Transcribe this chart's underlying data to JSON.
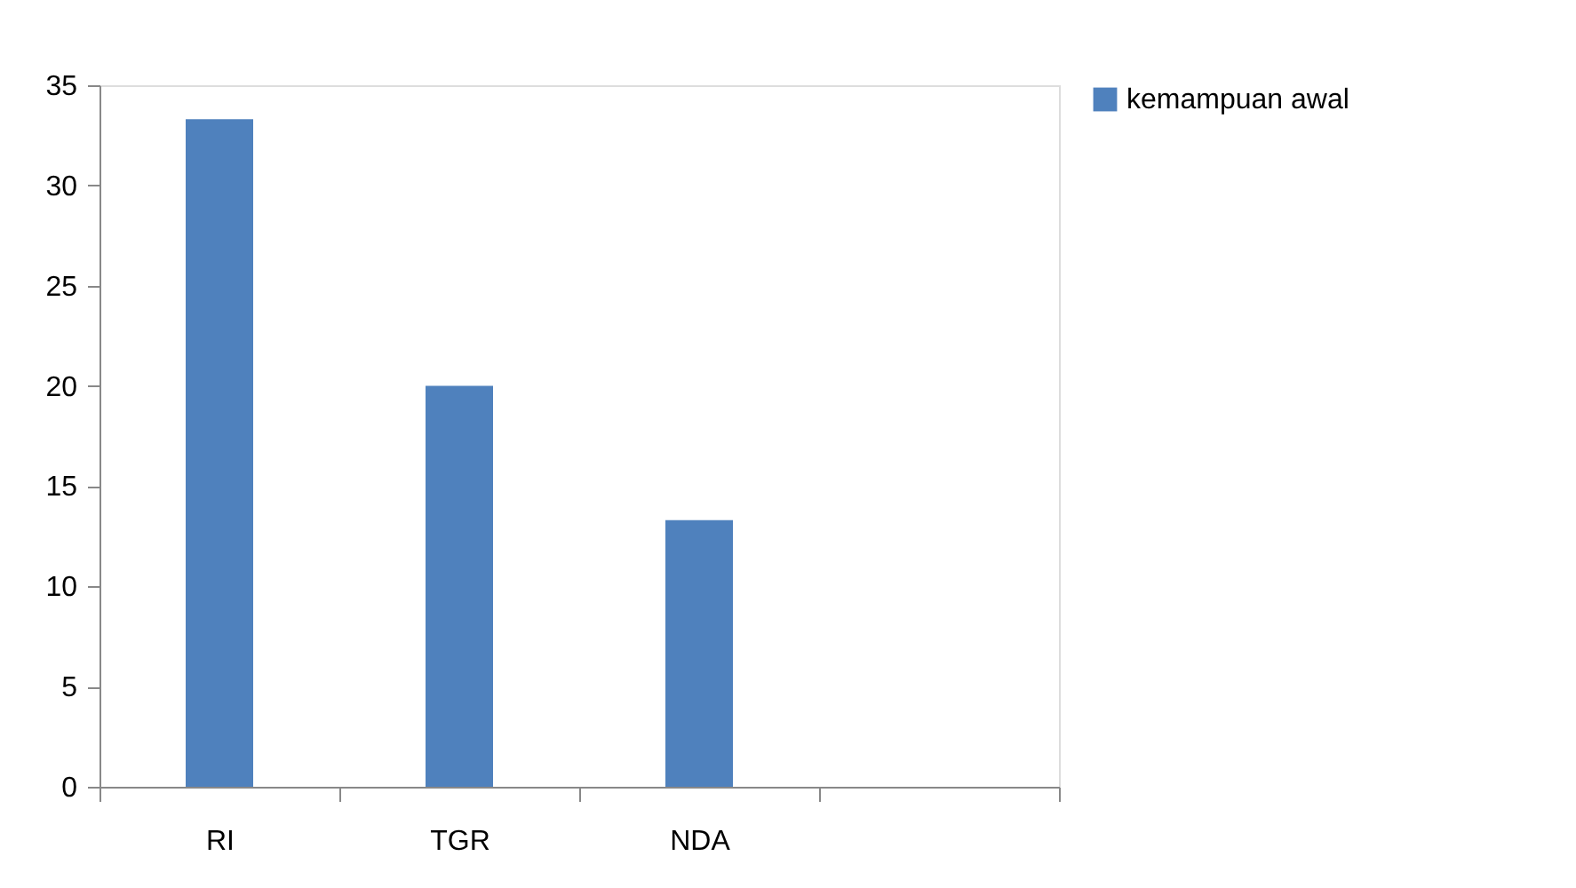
{
  "chart_data": {
    "type": "bar",
    "categories": [
      "RI",
      "TGR",
      "NDA",
      null
    ],
    "series": [
      {
        "name": "kemampuan awal",
        "color": "#4f81bd",
        "values": [
          33.3,
          20,
          13.3,
          null
        ]
      }
    ],
    "ylim": [
      0,
      35
    ],
    "yticks": [
      0,
      5,
      10,
      15,
      20,
      25,
      30,
      35
    ],
    "grid": false,
    "legend": "right"
  }
}
